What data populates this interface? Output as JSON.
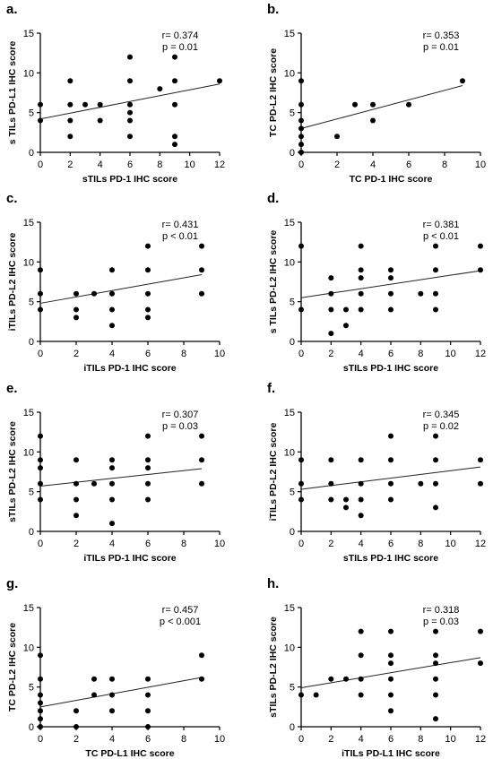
{
  "chart_data": [
    {
      "type": "scatter",
      "panel": "a.",
      "xlabel": "sTILs PD-1 IHC score",
      "ylabel": "s TILs PD-L1 IHC score",
      "xlim": [
        0,
        12
      ],
      "ylim": [
        0,
        15
      ],
      "xticks": [
        "0",
        "2",
        "4",
        "6",
        "8",
        "10",
        "12"
      ],
      "yticks": [
        "0",
        "5",
        "10",
        "15"
      ],
      "stat_r": "r= 0.374",
      "stat_p": "p = 0.01",
      "points": [
        [
          0,
          6
        ],
        [
          0,
          4
        ],
        [
          2,
          9
        ],
        [
          2,
          6
        ],
        [
          2,
          4
        ],
        [
          2,
          2
        ],
        [
          3,
          6
        ],
        [
          4,
          6
        ],
        [
          4,
          4
        ],
        [
          6,
          12
        ],
        [
          6,
          9
        ],
        [
          6,
          6
        ],
        [
          6,
          5
        ],
        [
          6,
          4
        ],
        [
          6,
          2
        ],
        [
          8,
          8
        ],
        [
          9,
          12
        ],
        [
          9,
          9
        ],
        [
          9,
          6
        ],
        [
          9,
          2
        ],
        [
          9,
          1
        ],
        [
          12,
          9
        ]
      ],
      "fit": [
        [
          0,
          4.2
        ],
        [
          12,
          8.6
        ]
      ],
      "grid": false
    },
    {
      "type": "scatter",
      "panel": "b.",
      "xlabel": "TC PD-1 IHC score",
      "ylabel": "TC PD-L2 IHC score",
      "xlim": [
        0,
        10
      ],
      "ylim": [
        0,
        15
      ],
      "xticks": [
        "0",
        "2",
        "4",
        "6",
        "8",
        "10"
      ],
      "yticks": [
        "0",
        "5",
        "10",
        "15"
      ],
      "stat_r": "r= 0.353",
      "stat_p": "p = 0.01",
      "points": [
        [
          0,
          9
        ],
        [
          0,
          6
        ],
        [
          0,
          4
        ],
        [
          0,
          3
        ],
        [
          0,
          2
        ],
        [
          0,
          1
        ],
        [
          0,
          0
        ],
        [
          2,
          2
        ],
        [
          3,
          6
        ],
        [
          4,
          6
        ],
        [
          4,
          4
        ],
        [
          6,
          6
        ],
        [
          9,
          9
        ]
      ],
      "fit": [
        [
          0,
          3.0
        ],
        [
          9,
          8.4
        ]
      ],
      "grid": false
    },
    {
      "type": "scatter",
      "panel": "c.",
      "xlabel": "iTILs PD-1 IHC score",
      "ylabel": "iTILs PD-L2 IHC score",
      "xlim": [
        0,
        10
      ],
      "ylim": [
        0,
        15
      ],
      "xticks": [
        "0",
        "2",
        "4",
        "6",
        "8",
        "10"
      ],
      "yticks": [
        "0",
        "5",
        "10",
        "15"
      ],
      "stat_r": "r= 0.431",
      "stat_p": "p < 0.01",
      "points": [
        [
          0,
          9
        ],
        [
          0,
          6
        ],
        [
          0,
          4
        ],
        [
          2,
          6
        ],
        [
          2,
          4
        ],
        [
          2,
          3
        ],
        [
          3,
          6
        ],
        [
          4,
          9
        ],
        [
          4,
          6
        ],
        [
          4,
          4
        ],
        [
          4,
          2
        ],
        [
          6,
          12
        ],
        [
          6,
          9
        ],
        [
          6,
          6
        ],
        [
          6,
          4
        ],
        [
          6,
          3
        ],
        [
          9,
          12
        ],
        [
          9,
          9
        ],
        [
          9,
          6
        ]
      ],
      "fit": [
        [
          0,
          4.8
        ],
        [
          9,
          8.4
        ]
      ],
      "grid": false
    },
    {
      "type": "scatter",
      "panel": "d.",
      "xlabel": "sTILs PD-1 IHC score",
      "ylabel": "s TILs PD-L2 IHC score",
      "xlim": [
        0,
        12
      ],
      "ylim": [
        0,
        15
      ],
      "xticks": [
        "0",
        "2",
        "4",
        "6",
        "8",
        "10",
        "12"
      ],
      "yticks": [
        "0",
        "5",
        "10",
        "15"
      ],
      "stat_r": "r= 0.381",
      "stat_p": "p < 0.01",
      "points": [
        [
          0,
          12
        ],
        [
          0,
          4
        ],
        [
          2,
          8
        ],
        [
          2,
          6
        ],
        [
          2,
          4
        ],
        [
          2,
          1
        ],
        [
          3,
          4
        ],
        [
          3,
          2
        ],
        [
          4,
          12
        ],
        [
          4,
          9
        ],
        [
          4,
          8
        ],
        [
          4,
          6
        ],
        [
          4,
          4
        ],
        [
          6,
          9
        ],
        [
          6,
          8
        ],
        [
          6,
          6
        ],
        [
          6,
          4
        ],
        [
          8,
          6
        ],
        [
          9,
          12
        ],
        [
          9,
          9
        ],
        [
          9,
          6
        ],
        [
          9,
          4
        ],
        [
          12,
          12
        ],
        [
          12,
          9
        ]
      ],
      "fit": [
        [
          0,
          5.5
        ],
        [
          12,
          8.9
        ]
      ],
      "grid": false
    },
    {
      "type": "scatter",
      "panel": "e.",
      "xlabel": "iTILs PD-1 IHC score",
      "ylabel": "sTILs PD-L2 IHC score",
      "xlim": [
        0,
        10
      ],
      "ylim": [
        0,
        15
      ],
      "xticks": [
        "0",
        "2",
        "4",
        "6",
        "8",
        "10"
      ],
      "yticks": [
        "0",
        "5",
        "10",
        "15"
      ],
      "stat_r": "r= 0.307",
      "stat_p": "p = 0.03",
      "points": [
        [
          0,
          12
        ],
        [
          0,
          9
        ],
        [
          0,
          8
        ],
        [
          0,
          6
        ],
        [
          0,
          4
        ],
        [
          2,
          9
        ],
        [
          2,
          6
        ],
        [
          2,
          4
        ],
        [
          2,
          2
        ],
        [
          3,
          6
        ],
        [
          4,
          9
        ],
        [
          4,
          8
        ],
        [
          4,
          6
        ],
        [
          4,
          4
        ],
        [
          4,
          1
        ],
        [
          6,
          12
        ],
        [
          6,
          9
        ],
        [
          6,
          8
        ],
        [
          6,
          6
        ],
        [
          6,
          4
        ],
        [
          9,
          12
        ],
        [
          9,
          9
        ],
        [
          9,
          6
        ]
      ],
      "fit": [
        [
          0,
          5.7
        ],
        [
          9,
          7.9
        ]
      ],
      "grid": false
    },
    {
      "type": "scatter",
      "panel": "f.",
      "xlabel": "sTILs PD-1 IHC score",
      "ylabel": "iTILs PD-L2 IHC score",
      "xlim": [
        0,
        12
      ],
      "ylim": [
        0,
        15
      ],
      "xticks": [
        "0",
        "2",
        "4",
        "6",
        "8",
        "10",
        "12"
      ],
      "yticks": [
        "0",
        "5",
        "10",
        "15"
      ],
      "stat_r": "r= 0.345",
      "stat_p": "p = 0.02",
      "points": [
        [
          0,
          9
        ],
        [
          0,
          6
        ],
        [
          0,
          4
        ],
        [
          2,
          9
        ],
        [
          2,
          6
        ],
        [
          2,
          4
        ],
        [
          3,
          4
        ],
        [
          3,
          3
        ],
        [
          4,
          9
        ],
        [
          4,
          6
        ],
        [
          4,
          4
        ],
        [
          4,
          2
        ],
        [
          6,
          12
        ],
        [
          6,
          9
        ],
        [
          6,
          6
        ],
        [
          6,
          4
        ],
        [
          8,
          6
        ],
        [
          9,
          12
        ],
        [
          9,
          9
        ],
        [
          9,
          6
        ],
        [
          9,
          3
        ],
        [
          12,
          9
        ],
        [
          12,
          6
        ]
      ],
      "fit": [
        [
          0,
          5.3
        ],
        [
          12,
          8.1
        ]
      ],
      "grid": false
    },
    {
      "type": "scatter",
      "panel": "g.",
      "xlabel": "TC PD-L1 IHC score",
      "ylabel": "TC PD-L2 IHC score",
      "xlim": [
        0,
        10
      ],
      "ylim": [
        0,
        15
      ],
      "xticks": [
        "0",
        "2",
        "4",
        "6",
        "8",
        "10"
      ],
      "yticks": [
        "0",
        "5",
        "10",
        "15"
      ],
      "stat_r": "r= 0.457",
      "stat_p": "p < 0.001",
      "points": [
        [
          0,
          9
        ],
        [
          0,
          6
        ],
        [
          0,
          4
        ],
        [
          0,
          3
        ],
        [
          0,
          2
        ],
        [
          0,
          1
        ],
        [
          0,
          0
        ],
        [
          2,
          2
        ],
        [
          2,
          0
        ],
        [
          3,
          6
        ],
        [
          3,
          4
        ],
        [
          4,
          6
        ],
        [
          4,
          4
        ],
        [
          4,
          2
        ],
        [
          6,
          6
        ],
        [
          6,
          4
        ],
        [
          6,
          2
        ],
        [
          6,
          0
        ],
        [
          9,
          9
        ],
        [
          9,
          6
        ]
      ],
      "fit": [
        [
          0,
          2.5
        ],
        [
          9,
          6.2
        ]
      ],
      "grid": false
    },
    {
      "type": "scatter",
      "panel": "h.",
      "xlabel": "iTILs PD-L1 IHC score",
      "ylabel": "sTILs PD-L2 IHC score",
      "xlim": [
        0,
        12
      ],
      "ylim": [
        0,
        15
      ],
      "xticks": [
        "0",
        "2",
        "4",
        "6",
        "8",
        "10",
        "12"
      ],
      "yticks": [
        "0",
        "5",
        "10",
        "15"
      ],
      "stat_r": "r= 0.318",
      "stat_p": "p = 0.03",
      "points": [
        [
          0,
          4
        ],
        [
          1,
          4
        ],
        [
          2,
          6
        ],
        [
          3,
          6
        ],
        [
          4,
          12
        ],
        [
          4,
          9
        ],
        [
          4,
          6
        ],
        [
          4,
          4
        ],
        [
          6,
          12
        ],
        [
          6,
          9
        ],
        [
          6,
          8
        ],
        [
          6,
          6
        ],
        [
          6,
          4
        ],
        [
          6,
          2
        ],
        [
          9,
          12
        ],
        [
          9,
          9
        ],
        [
          9,
          8
        ],
        [
          9,
          6
        ],
        [
          9,
          4
        ],
        [
          9,
          1
        ],
        [
          12,
          12
        ],
        [
          12,
          8
        ]
      ],
      "fit": [
        [
          0,
          4.9
        ],
        [
          12,
          8.7
        ]
      ],
      "grid": false
    }
  ]
}
